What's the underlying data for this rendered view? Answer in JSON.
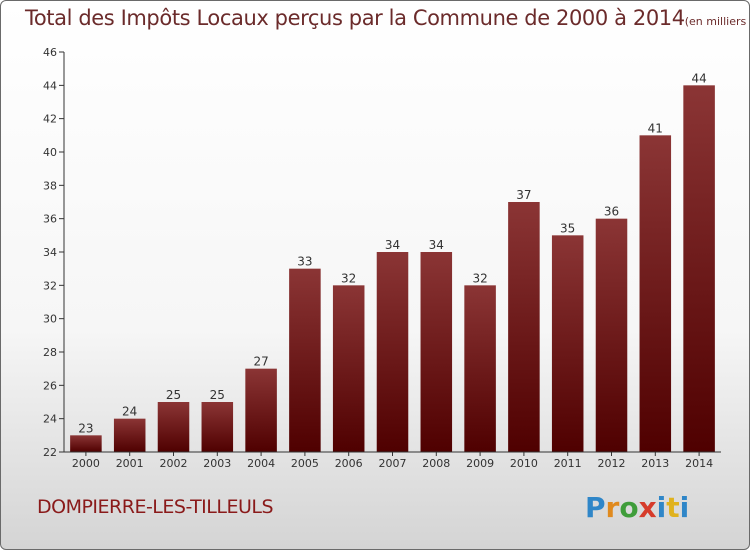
{
  "title": "Total des Impôts Locaux perçus par la Commune de 2000 à 2014",
  "unit": "(en milliers d'€)",
  "commune": "DOMPIERRE-LES-TILLEULS",
  "logo": {
    "letters": [
      "P",
      "r",
      "o",
      "x",
      "i",
      "t",
      "i"
    ],
    "text": "Proxiti"
  },
  "colors": {
    "bar_top": "#8b3535",
    "bar_bottom": "#4f0000",
    "axis": "#333333",
    "title": "#6b2b2b",
    "commune": "#8a1a1a"
  },
  "chart_data": {
    "type": "bar",
    "title": "Total des Impôts Locaux perçus par la Commune de 2000 à 2014",
    "ylabel": "",
    "xlabel": "",
    "ylim": [
      22,
      46
    ],
    "yticks": [
      22,
      24,
      26,
      28,
      30,
      32,
      34,
      36,
      38,
      40,
      42,
      44,
      46
    ],
    "categories": [
      "2000",
      "2001",
      "2002",
      "2003",
      "2004",
      "2005",
      "2006",
      "2007",
      "2008",
      "2009",
      "2010",
      "2011",
      "2012",
      "2013",
      "2014"
    ],
    "values": [
      23,
      24,
      25,
      25,
      27,
      33,
      32,
      34,
      34,
      32,
      37,
      35,
      36,
      41,
      44
    ],
    "grid": false
  }
}
